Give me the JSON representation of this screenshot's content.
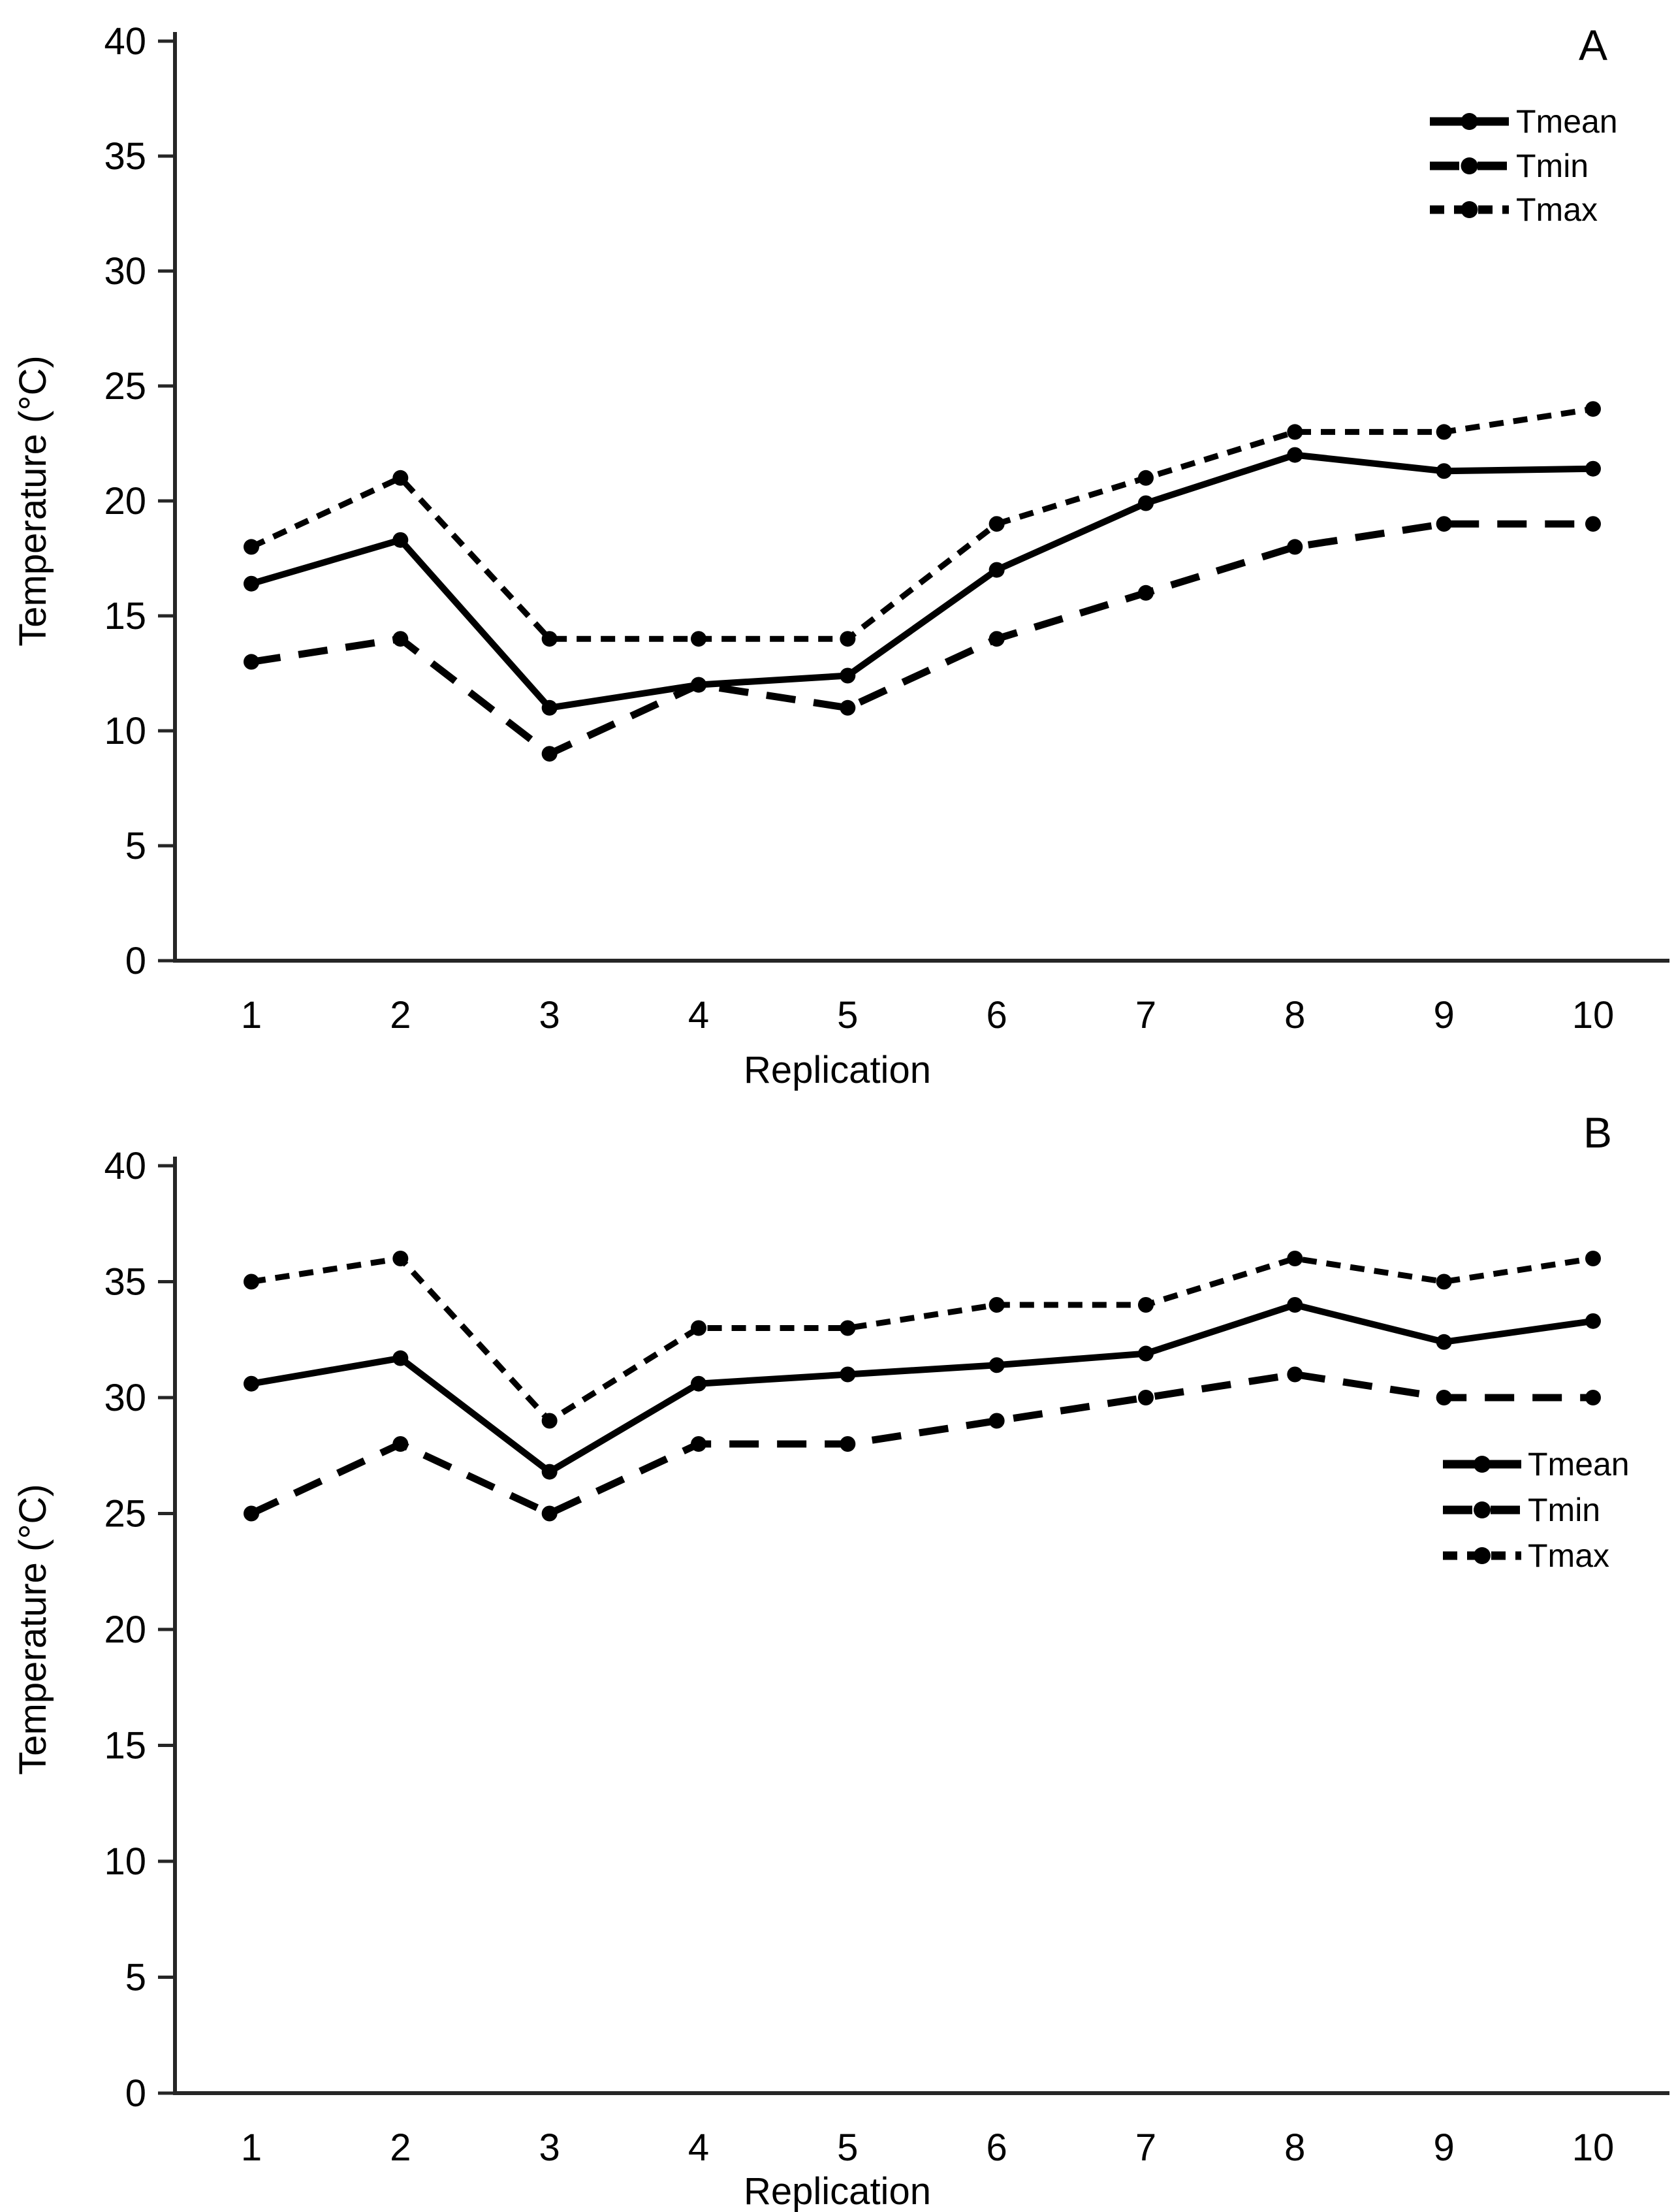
{
  "figure": {
    "background": "#ffffff",
    "description": "Two stacked line charts of temperature per replication"
  },
  "styles": {
    "line_color": "#000000",
    "text_color": "#000000",
    "axis_color": "#262626"
  },
  "chart_data": [
    {
      "type": "line",
      "panel_label": "A",
      "xlabel": "Replication",
      "ylabel": "Temperature (°C)",
      "x_ticks": [
        "1",
        "2",
        "3",
        "4",
        "5",
        "6",
        "7",
        "8",
        "9",
        "10"
      ],
      "y_ticks": [
        0,
        5,
        10,
        15,
        20,
        25,
        30,
        35,
        40
      ],
      "ylim": [
        0,
        40
      ],
      "grid": false,
      "legend_position": "top-right",
      "legend_labels": [
        "Tmean",
        "Tmin",
        "Tmax"
      ],
      "series": [
        {
          "name": "Tmean",
          "line_style": "solid",
          "marker": "circle",
          "values": [
            16.4,
            18.3,
            11.0,
            12.0,
            12.4,
            17.0,
            19.9,
            22.0,
            21.3,
            21.4
          ]
        },
        {
          "name": "Tmin",
          "line_style": "long-dash",
          "marker": "circle",
          "values": [
            13,
            14,
            9,
            12,
            11,
            14,
            16,
            18,
            19,
            19
          ]
        },
        {
          "name": "Tmax",
          "line_style": "short-dash",
          "marker": "circle",
          "values": [
            18,
            21,
            14,
            14,
            14,
            19,
            21,
            23,
            23,
            24
          ]
        }
      ]
    },
    {
      "type": "line",
      "panel_label": "B",
      "xlabel": "Replication",
      "ylabel": "Temperature (°C)",
      "x_ticks": [
        "1",
        "2",
        "3",
        "4",
        "5",
        "6",
        "7",
        "8",
        "9",
        "10"
      ],
      "y_ticks": [
        0,
        5,
        10,
        15,
        20,
        25,
        30,
        35,
        40
      ],
      "ylim": [
        0,
        40
      ],
      "grid": false,
      "legend_position": "middle-right",
      "legend_labels": [
        "Tmean",
        "Tmin",
        "Tmax"
      ],
      "series": [
        {
          "name": "Tmean",
          "line_style": "solid",
          "marker": "circle",
          "values": [
            30.6,
            31.7,
            26.8,
            30.6,
            31.0,
            31.4,
            31.9,
            34.0,
            32.4,
            33.3
          ]
        },
        {
          "name": "Tmin",
          "line_style": "long-dash",
          "marker": "circle",
          "values": [
            25,
            28,
            25,
            28,
            28,
            29,
            30,
            31,
            30,
            30
          ]
        },
        {
          "name": "Tmax",
          "line_style": "short-dash",
          "marker": "circle",
          "values": [
            35,
            36,
            29,
            33,
            33,
            34,
            34,
            36,
            35,
            36
          ]
        }
      ]
    }
  ]
}
